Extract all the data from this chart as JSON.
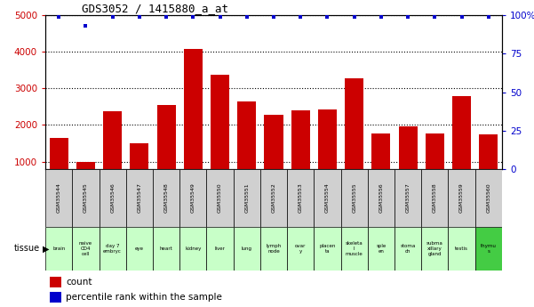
{
  "title": "GDS3052 / 1415880_a_at",
  "samples": [
    "GSM35544",
    "GSM35545",
    "GSM35546",
    "GSM35547",
    "GSM35548",
    "GSM35549",
    "GSM35550",
    "GSM35551",
    "GSM35552",
    "GSM35553",
    "GSM35554",
    "GSM35555",
    "GSM35556",
    "GSM35557",
    "GSM35558",
    "GSM35559",
    "GSM35560"
  ],
  "counts": [
    1650,
    1000,
    2380,
    1510,
    2540,
    4080,
    3380,
    2650,
    2290,
    2410,
    2430,
    3270,
    1760,
    1960,
    1760,
    2790,
    1740
  ],
  "percentiles": [
    99,
    93,
    99,
    99,
    99,
    99,
    99,
    99,
    99,
    99,
    99,
    99,
    99,
    99,
    99,
    99,
    99
  ],
  "tissues": [
    "brain",
    "naive\nCD4\ncell",
    "day 7\nembryc",
    "eye",
    "heart",
    "kidney",
    "liver",
    "lung",
    "lymph\nnode",
    "ovar\ny",
    "placen\nta",
    "skeleta\nl\nmuscle",
    "sple\nen",
    "stoma\nch",
    "subma\nxillary\ngland",
    "testis",
    "thymu\ns"
  ],
  "tissue_colors": [
    "#c8ffc8",
    "#c8ffc8",
    "#c8ffc8",
    "#c8ffc8",
    "#c8ffc8",
    "#c8ffc8",
    "#c8ffc8",
    "#c8ffc8",
    "#c8ffc8",
    "#c8ffc8",
    "#c8ffc8",
    "#c8ffc8",
    "#c8ffc8",
    "#c8ffc8",
    "#c8ffc8",
    "#c8ffc8",
    "#44cc44"
  ],
  "bar_color": "#cc0000",
  "dot_color": "#0000cc",
  "ylim_left": [
    800,
    5000
  ],
  "ylim_right": [
    0,
    100
  ],
  "yticks_left": [
    1000,
    2000,
    3000,
    4000,
    5000
  ],
  "yticks_right": [
    0,
    25,
    50,
    75,
    100
  ],
  "left_tick_color": "#cc0000",
  "right_tick_color": "#0000cc",
  "label_bg": "#d0d0d0",
  "background_color": "#ffffff"
}
